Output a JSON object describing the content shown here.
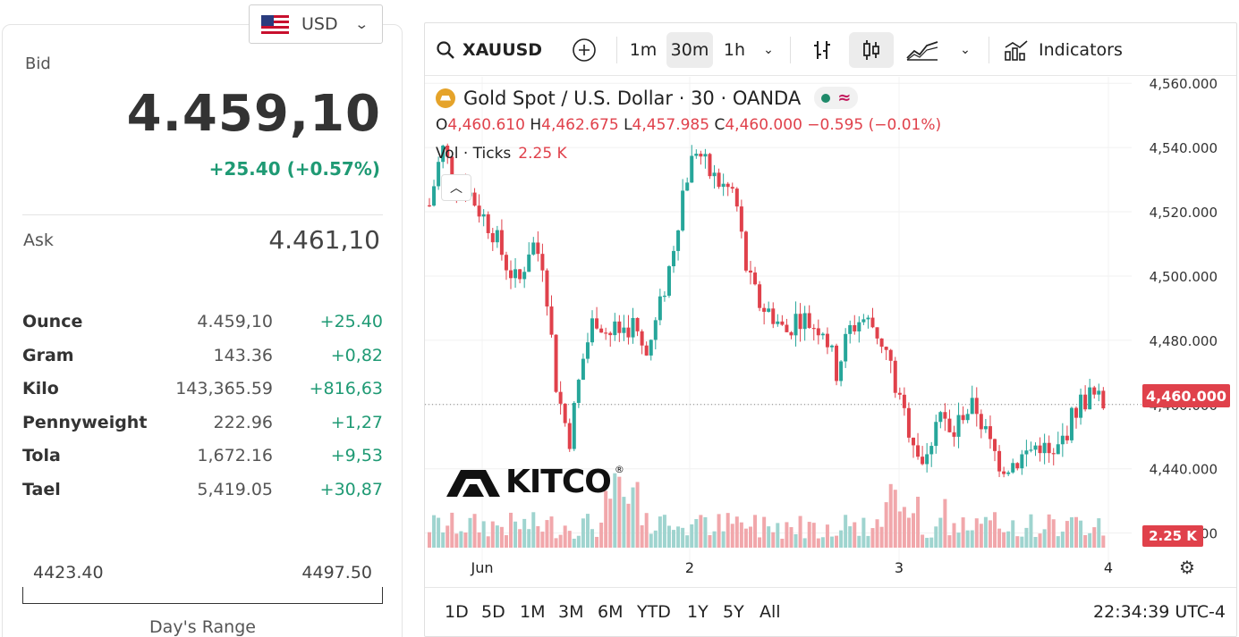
{
  "currency": {
    "label": "USD",
    "flag_icon": "us-flag-icon"
  },
  "quote": {
    "bid_label": "Bid",
    "bid_value": "4.459,10",
    "bid_change": "+25.40 (+0.57%)",
    "ask_label": "Ask",
    "ask_value": "4.461,10"
  },
  "units": [
    {
      "name": "Ounce",
      "price": "4.459,10",
      "change": "+25.40"
    },
    {
      "name": "Gram",
      "price": "143.36",
      "change": "+0,82"
    },
    {
      "name": "Kilo",
      "price": "143,365.59",
      "change": "+816,63"
    },
    {
      "name": "Pennyweight",
      "price": "222.96",
      "change": "+1,27"
    },
    {
      "name": "Tola",
      "price": "1,672.16",
      "change": "+9,53"
    },
    {
      "name": "Tael",
      "price": "5,419.05",
      "change": "+30,87"
    }
  ],
  "day_range": {
    "low": "4423.40",
    "high": "4497.50",
    "label": "Day's Range"
  },
  "toolbar": {
    "symbol": "XAUUSD",
    "intervals": [
      "1m",
      "30m",
      "1h"
    ],
    "active_interval": "30m",
    "indicators_label": "Indicators"
  },
  "legend": {
    "title": "Gold Spot / U.S. Dollar · 30 · OANDA",
    "o_label": "O",
    "o_value": "4,460.610",
    "h_label": "H",
    "h_value": "4,462.675",
    "l_label": "L",
    "l_value": "4,457.985",
    "c_label": "C",
    "c_value": "4,460.000",
    "change": "−0.595 (−0.01%)",
    "vol_label": "Vol · Ticks",
    "vol_value": "2.25 K"
  },
  "watermark": "KITCO",
  "price_tag": "4,460.000",
  "volume_tag": "2.25 K",
  "bottom": {
    "ranges": [
      "1D",
      "5D",
      "1M",
      "3M",
      "6M",
      "YTD",
      "1Y",
      "5Y",
      "All"
    ],
    "clock": "22:34:39 UTC-4"
  },
  "colors": {
    "up": "#26a69a",
    "down": "#e0414b",
    "up_volume": "#9fd4cf",
    "down_volume": "#f1a7ab"
  },
  "chart_data": {
    "type": "candlestick",
    "symbol": "XAUUSD",
    "interval": "30",
    "y_ticks": [
      "4,560.000",
      "4,540.000",
      "4,520.000",
      "4,500.000",
      "4,480.000",
      "4,460.000",
      "4,440.000",
      "4,420.000"
    ],
    "ylim": [
      4416,
      4562
    ],
    "x_ticks": [
      "Jun",
      "2",
      "3",
      "4"
    ],
    "close_path": [
      4522,
      4540,
      4530,
      4527,
      4520,
      4514,
      4504,
      4497,
      4511,
      4504,
      4465,
      4449,
      4473,
      4488,
      4482,
      4483,
      4485,
      4474,
      4488,
      4505,
      4528,
      4540,
      4532,
      4528,
      4526,
      4500,
      4491,
      4488,
      4482,
      4488,
      4485,
      4484,
      4470,
      4483,
      4487,
      4484,
      4476,
      4460,
      4450,
      4440,
      4460,
      4449,
      4458,
      4459,
      4448,
      4441,
      4442,
      4445,
      4448,
      4442,
      4451,
      4460,
      4463,
      4460
    ],
    "last_price": 4460.0
  }
}
